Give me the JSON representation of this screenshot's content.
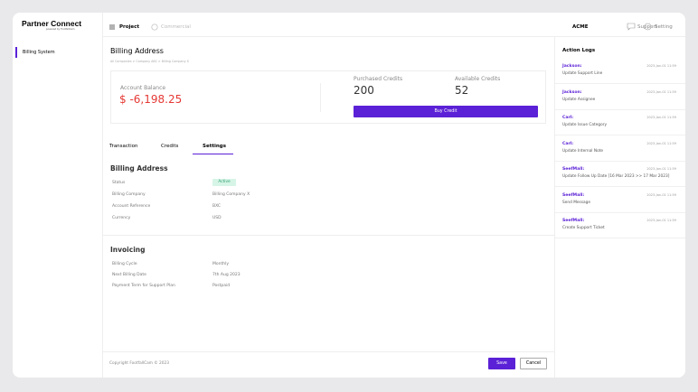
{
  "sidebar": {
    "logo": "Partner Connect",
    "logo_sub": "powered by FootfallCam",
    "nav": [
      "Billing System"
    ]
  },
  "topbar": {
    "tabs": [
      "Project",
      "Commercial"
    ],
    "company": "ACME",
    "support": "Support",
    "setting": "Setting"
  },
  "main": {
    "title": "Billing Address",
    "breadcrumb": "All Companies > Company ABC > Billing Company X",
    "balance": {
      "label": "Account Balance",
      "value": "$ -6,198.25"
    },
    "purchased": {
      "label": "Purchased Credits",
      "value": 200
    },
    "available": {
      "label": "Available Credits",
      "value": 52
    },
    "buy_button": "Buy Credit",
    "tabs": [
      "Transaction",
      "Credits",
      "Settings"
    ],
    "billing": {
      "title": "Billing Address",
      "rows": [
        [
          "Status",
          "Active"
        ],
        [
          "Billing Company",
          "Billing Company X"
        ],
        [
          "Account Reference",
          "BXC"
        ],
        [
          "Currency",
          "USD"
        ]
      ]
    },
    "invoicing": {
      "title": "Invoicing",
      "rows": [
        [
          "Billing Cycle",
          "Monthly"
        ],
        [
          "Next Billing Date",
          "7th Aug 2023"
        ],
        [
          "Payment Term for Support Plan",
          "Postpaid"
        ]
      ]
    },
    "footer": {
      "copyright": "Copyright FootfallCam © 2023",
      "save": "Save",
      "cancel": "Cancel"
    }
  },
  "logs": {
    "title": "Action Logs",
    "entries": [
      {
        "name": "Jackson:",
        "date": "2023-Jan-01 11:59",
        "action": "Update Support Line"
      },
      {
        "name": "Jackson:",
        "date": "2023-Jan-01 11:59",
        "action": "Update Assignee"
      },
      {
        "name": "Carl:",
        "date": "2023-Jan-01 11:59",
        "action": "Update Issue Category"
      },
      {
        "name": "Carl:",
        "date": "2023-Jan-01 11:59",
        "action": "Update Internal Note"
      },
      {
        "name": "SeefMall:",
        "date": "2023-Jan-01 11:59",
        "action": "Update Follow Up Date [16 Mar 2023 >> 17 Mar 2023]"
      },
      {
        "name": "SeefMall:",
        "date": "2023-Jan-01 11:59",
        "action": "Send Message"
      },
      {
        "name": "SeefMall:",
        "date": "2023-Jan-01 11:59",
        "action": "Create Support Ticket"
      }
    ]
  }
}
